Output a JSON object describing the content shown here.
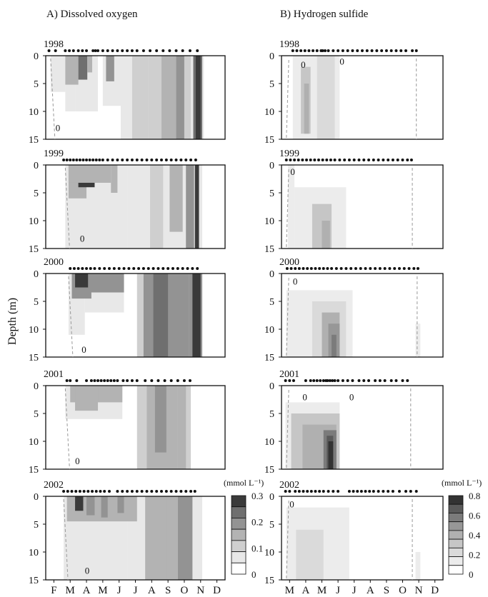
{
  "figure": {
    "panel_a_title": "A) Dissolved oxygen",
    "panel_b_title": "B) Hydrogen sulfide",
    "ylabel": "Depth (m)",
    "years": [
      "1998",
      "1999",
      "2000",
      "2001",
      "2002"
    ],
    "y_ticks": [
      "0",
      "5",
      "10",
      "15"
    ]
  },
  "chart_data": [
    {
      "type": "heatmap",
      "title": "A) Dissolved oxygen",
      "ylabel": "Depth (m)",
      "months": [
        "F",
        "M",
        "A",
        "M",
        "J",
        "J",
        "A",
        "S",
        "O",
        "N",
        "D"
      ],
      "ylim": [
        15,
        0
      ],
      "legend": {
        "unit": "(mmol L⁻¹)",
        "ticks": [
          "0",
          "0.1",
          "0.2",
          "0.3"
        ],
        "levels": [
          "#ffffff",
          "#e8e8e8",
          "#cfcfcf",
          "#b3b3b3",
          "#939393",
          "#6f6f6f",
          "#3a3a3a"
        ]
      },
      "panels": [
        {
          "year": "1998",
          "contour_label": "0",
          "sample_x": [
            0.2,
            0.6,
            1.2,
            1.45,
            1.7,
            2.0,
            2.25,
            2.5,
            2.9,
            3.05,
            3.2,
            3.5,
            3.8,
            4.1,
            4.4,
            4.7,
            5.0,
            5.3,
            5.6,
            6.0,
            6.4,
            6.8,
            7.2,
            7.6,
            8.0,
            8.4,
            8.85,
            9.3
          ],
          "anoxic_start_x": 0.3
        },
        {
          "year": "1999",
          "contour_label": "0",
          "sample_x": [
            1.1,
            1.3,
            1.5,
            1.7,
            1.9,
            2.1,
            2.3,
            2.5,
            2.7,
            2.9,
            3.1,
            3.3,
            3.5,
            3.8,
            4.1,
            4.4,
            4.7,
            5.0,
            5.3,
            5.6,
            5.9,
            6.2,
            6.5,
            6.8,
            7.1,
            7.4,
            7.7,
            8.0,
            8.3,
            8.6,
            8.9,
            9.2
          ],
          "anoxic_start_x": 1.2
        },
        {
          "year": "2000",
          "contour_label": "0",
          "sample_x": [
            1.5,
            1.75,
            2.0,
            2.25,
            2.5,
            2.75,
            3.0,
            3.3,
            3.6,
            3.9,
            4.2,
            4.5,
            4.8,
            5.1,
            5.4,
            5.7,
            6.0,
            6.3,
            6.6,
            6.9,
            7.2,
            7.5,
            7.8,
            8.1,
            8.4,
            8.7,
            9.0,
            9.3
          ],
          "anoxic_start_x": 1.4
        },
        {
          "year": "2001",
          "contour_label": "0",
          "sample_x": [
            1.3,
            1.5,
            1.9,
            2.5,
            2.8,
            3.0,
            3.2,
            3.4,
            3.6,
            3.8,
            4.0,
            4.2,
            4.4,
            4.75,
            5.0,
            5.3,
            5.6,
            6.1,
            6.5,
            6.9,
            7.3,
            7.7,
            8.1,
            8.5,
            8.85
          ],
          "anoxic_start_x": 1.2
        },
        {
          "year": "2002",
          "contour_label": "0",
          "sample_x": [
            1.1,
            1.35,
            1.6,
            1.85,
            2.1,
            2.35,
            2.6,
            2.85,
            3.1,
            3.35,
            3.6,
            3.9,
            4.4,
            4.7,
            5.0,
            5.3,
            5.6,
            5.9,
            6.2,
            6.5,
            6.8,
            7.1,
            7.4,
            7.7,
            8.0,
            8.3,
            8.6,
            8.9,
            9.15
          ],
          "anoxic_start_x": 1.1
        }
      ]
    },
    {
      "type": "heatmap",
      "title": "B) Hydrogen sulfide",
      "months": [
        "M",
        "A",
        "M",
        "J",
        "J",
        "A",
        "S",
        "O",
        "N",
        "D"
      ],
      "ylim": [
        15,
        0
      ],
      "legend": {
        "unit": "(mmol L⁻¹)",
        "ticks": [
          "0",
          "0.2",
          "0.4",
          "0.6",
          "0.8"
        ],
        "levels": [
          "#ffffff",
          "#ececec",
          "#dadada",
          "#c6c6c6",
          "#b0b0b0",
          "#979797",
          "#7b7b7b",
          "#5a5a5a",
          "#333333"
        ]
      },
      "panels": [
        {
          "year": "1998",
          "contour_label_1": "0",
          "contour_label_2": "0",
          "sample_x": [
            0.7,
            0.95,
            1.2,
            1.45,
            1.7,
            1.95,
            2.2,
            2.45,
            2.55,
            2.7,
            2.9,
            3.2,
            3.5,
            3.8,
            4.1,
            4.4,
            4.7,
            5.0,
            5.3,
            5.6,
            5.9,
            6.2,
            6.5,
            6.8,
            7.1,
            7.4,
            7.7,
            8.1,
            8.35
          ],
          "sulfidic_end_x": 8.35
        },
        {
          "year": "1999",
          "contour_label": "0",
          "sample_x": [
            0.3,
            0.55,
            0.8,
            1.05,
            1.3,
            1.55,
            1.8,
            2.05,
            2.3,
            2.55,
            2.8,
            3.05,
            3.3,
            3.6,
            3.9,
            4.2,
            4.5,
            4.8,
            5.1,
            5.4,
            5.7,
            6.0,
            6.3,
            6.6,
            6.9,
            7.2,
            7.5,
            7.8,
            8.05
          ],
          "sulfidic_end_x": 8.1
        },
        {
          "year": "2000",
          "contour_label": "0",
          "sample_x": [
            0.35,
            0.6,
            0.85,
            1.1,
            1.35,
            1.6,
            1.85,
            2.1,
            2.35,
            2.6,
            2.85,
            3.1,
            3.4,
            3.7,
            4.0,
            4.3,
            4.6,
            4.9,
            5.2,
            5.5,
            5.8,
            6.1,
            6.4,
            6.7,
            7.0,
            7.3,
            7.6,
            7.9,
            8.2,
            8.45
          ],
          "sulfidic_end_x": 8.4
        },
        {
          "year": "2001",
          "contour_label_1": "0",
          "contour_label_2": "0",
          "sample_x": [
            0.25,
            0.5,
            0.75,
            1.5,
            1.8,
            2.0,
            2.2,
            2.4,
            2.6,
            2.75,
            2.85,
            3.0,
            3.15,
            3.3,
            3.5,
            3.8,
            4.1,
            4.4,
            4.8,
            5.1,
            5.4,
            5.8,
            6.1,
            6.4,
            6.8,
            7.1,
            7.5,
            7.8
          ],
          "sulfidic_end_x": 8.0
        },
        {
          "year": "2002",
          "contour_label": "0",
          "sample_x": [
            0.25,
            0.5,
            0.85,
            1.1,
            1.35,
            1.6,
            1.85,
            2.1,
            2.35,
            2.6,
            2.9,
            3.2,
            3.5,
            4.2,
            4.45,
            4.7,
            4.95,
            5.2,
            5.45,
            5.7,
            6.0,
            6.3,
            6.6,
            6.9,
            7.3,
            7.7,
            8.0,
            8.35
          ],
          "sulfidic_end_x": 8.1
        }
      ]
    }
  ]
}
